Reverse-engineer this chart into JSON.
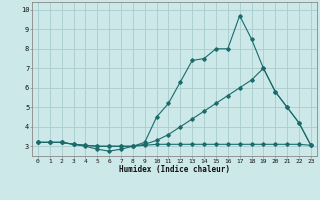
{
  "title": "",
  "xlabel": "Humidex (Indice chaleur)",
  "background_color": "#cce8e8",
  "grid_color": "#aacccc",
  "line_color": "#1a6b6b",
  "xlim": [
    -0.5,
    23.5
  ],
  "ylim": [
    2.5,
    10.4
  ],
  "xticks": [
    0,
    1,
    2,
    3,
    4,
    5,
    6,
    7,
    8,
    9,
    10,
    11,
    12,
    13,
    14,
    15,
    16,
    17,
    18,
    19,
    20,
    21,
    22,
    23
  ],
  "yticks": [
    3,
    4,
    5,
    6,
    7,
    8,
    9,
    10
  ],
  "line1_x": [
    0,
    1,
    2,
    3,
    4,
    5,
    6,
    7,
    8,
    9,
    10,
    11,
    12,
    13,
    14,
    15,
    16,
    17,
    18,
    19,
    20,
    21,
    22,
    23
  ],
  "line1_y": [
    3.2,
    3.2,
    3.2,
    3.1,
    3.0,
    2.85,
    2.75,
    2.85,
    3.0,
    3.2,
    4.5,
    5.2,
    6.3,
    7.4,
    7.5,
    8.0,
    8.0,
    9.7,
    8.5,
    7.0,
    5.8,
    5.0,
    4.2,
    3.05
  ],
  "line2_x": [
    0,
    1,
    2,
    3,
    4,
    5,
    6,
    7,
    8,
    9,
    10,
    11,
    12,
    13,
    14,
    15,
    16,
    17,
    18,
    19,
    20,
    21,
    22,
    23
  ],
  "line2_y": [
    3.2,
    3.2,
    3.2,
    3.1,
    3.05,
    3.0,
    3.0,
    3.0,
    3.0,
    3.1,
    3.3,
    3.6,
    4.0,
    4.4,
    4.8,
    5.2,
    5.6,
    6.0,
    6.4,
    7.0,
    5.8,
    5.0,
    4.2,
    3.05
  ],
  "line3_x": [
    0,
    1,
    2,
    3,
    4,
    5,
    6,
    7,
    8,
    9,
    10,
    11,
    12,
    13,
    14,
    15,
    16,
    17,
    18,
    19,
    20,
    21,
    22,
    23
  ],
  "line3_y": [
    3.2,
    3.2,
    3.2,
    3.1,
    3.05,
    3.0,
    3.0,
    3.0,
    3.0,
    3.05,
    3.1,
    3.1,
    3.1,
    3.1,
    3.1,
    3.1,
    3.1,
    3.1,
    3.1,
    3.1,
    3.1,
    3.1,
    3.1,
    3.05
  ]
}
